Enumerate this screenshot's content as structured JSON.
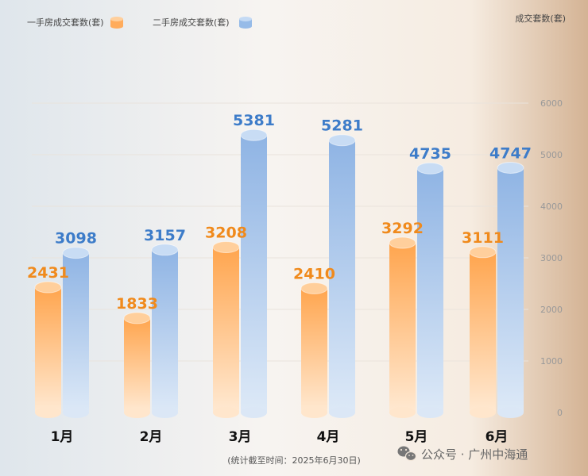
{
  "chart_data": {
    "type": "bar",
    "categories": [
      "1月",
      "2月",
      "3月",
      "4月",
      "5月",
      "6月"
    ],
    "series": [
      {
        "name": "一手房成交套数(套)",
        "values": [
          2431,
          1833,
          3208,
          2410,
          3292,
          3111
        ],
        "color": "#ffac5c",
        "label_color": "#f08a1c"
      },
      {
        "name": "二手房成交套数(套)",
        "values": [
          3098,
          3157,
          5381,
          5281,
          4735,
          4747
        ],
        "color": "#96bbe8",
        "label_color": "#3d7cc9"
      }
    ],
    "ylabel": "成交套数(套)",
    "ylim": [
      0,
      6000
    ],
    "yticks": [
      0,
      1000,
      2000,
      3000,
      4000,
      5000,
      6000
    ],
    "grid": true,
    "legend_position": "top-left"
  },
  "footnote": "(统计截至时间：2025年6月30日)",
  "watermark": {
    "text": "公众号 · 广州中海通",
    "icon": "wechat-icon"
  }
}
